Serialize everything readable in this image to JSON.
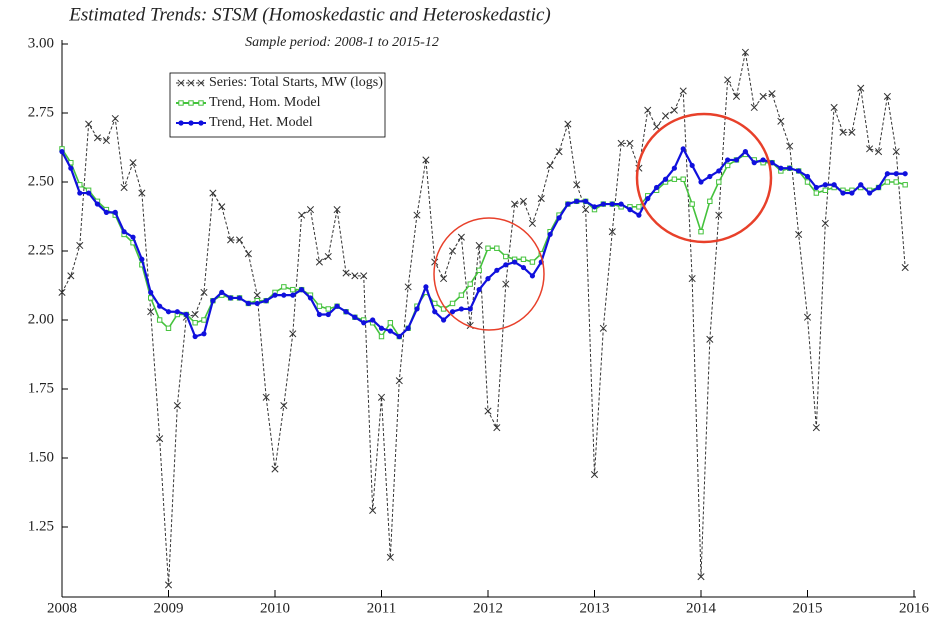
{
  "chart_data": {
    "type": "line",
    "title": "Estimated Trends: STSM (Homoskedastic and Heteroskedastic)",
    "subtitle": "Sample period: 2008-1 to 2015-12",
    "x": [
      2008,
      2008.083,
      2008.167,
      2008.25,
      2008.333,
      2008.417,
      2008.5,
      2008.583,
      2008.667,
      2008.75,
      2008.833,
      2008.917,
      2009,
      2009.083,
      2009.167,
      2009.25,
      2009.333,
      2009.417,
      2009.5,
      2009.583,
      2009.667,
      2009.75,
      2009.833,
      2009.917,
      2010,
      2010.083,
      2010.167,
      2010.25,
      2010.333,
      2010.417,
      2010.5,
      2010.583,
      2010.667,
      2010.75,
      2010.833,
      2010.917,
      2011,
      2011.083,
      2011.167,
      2011.25,
      2011.333,
      2011.417,
      2011.5,
      2011.583,
      2011.667,
      2011.75,
      2011.833,
      2011.917,
      2012,
      2012.083,
      2012.167,
      2012.25,
      2012.333,
      2012.417,
      2012.5,
      2012.583,
      2012.667,
      2012.75,
      2012.833,
      2012.917,
      2013,
      2013.083,
      2013.167,
      2013.25,
      2013.333,
      2013.417,
      2013.5,
      2013.583,
      2013.667,
      2013.75,
      2013.833,
      2013.917,
      2014,
      2014.083,
      2014.167,
      2014.25,
      2014.333,
      2014.417,
      2014.5,
      2014.583,
      2014.667,
      2014.75,
      2014.833,
      2014.917,
      2015,
      2015.083,
      2015.167,
      2015.25,
      2015.333,
      2015.417,
      2015.5,
      2015.583,
      2015.667,
      2015.75,
      2015.833,
      2015.917
    ],
    "series": [
      {
        "name": "Series: Total Starts, MW (logs)",
        "color": "#333333",
        "marker": "x",
        "values": [
          2.1,
          2.16,
          2.27,
          2.71,
          2.66,
          2.65,
          2.73,
          2.48,
          2.57,
          2.46,
          2.03,
          1.57,
          1.04,
          1.69,
          2.01,
          2.02,
          2.1,
          2.46,
          2.41,
          2.29,
          2.29,
          2.24,
          2.09,
          1.72,
          1.46,
          1.69,
          1.95,
          2.38,
          2.4,
          2.21,
          2.23,
          2.4,
          2.17,
          2.16,
          2.16,
          1.31,
          1.72,
          1.14,
          1.78,
          2.12,
          2.38,
          2.58,
          2.21,
          2.15,
          2.25,
          2.3,
          1.98,
          2.27,
          1.67,
          1.61,
          2.13,
          2.42,
          2.43,
          2.35,
          2.44,
          2.56,
          2.61,
          2.71,
          2.49,
          2.4,
          1.44,
          1.97,
          2.32,
          2.64,
          2.64,
          2.55,
          2.76,
          2.7,
          2.74,
          2.76,
          2.83,
          2.15,
          1.07,
          1.93,
          2.38,
          2.87,
          2.81,
          2.97,
          2.77,
          2.81,
          2.82,
          2.72,
          2.63,
          2.31,
          2.01,
          1.61,
          2.35,
          2.77,
          2.68,
          2.68,
          2.84,
          2.62,
          2.61,
          2.81,
          2.61,
          2.19
        ]
      },
      {
        "name": "Trend, Hom. Model",
        "color": "#44c23c",
        "marker": "square",
        "values": [
          2.62,
          2.57,
          2.49,
          2.47,
          2.43,
          2.4,
          2.38,
          2.31,
          2.28,
          2.2,
          2.08,
          2.0,
          1.97,
          2.02,
          2.02,
          1.99,
          2.0,
          2.07,
          2.09,
          2.08,
          2.08,
          2.06,
          2.07,
          2.07,
          2.1,
          2.12,
          2.11,
          2.11,
          2.09,
          2.05,
          2.04,
          2.05,
          2.03,
          2.01,
          2.0,
          1.99,
          1.94,
          1.99,
          1.94,
          1.97,
          2.05,
          2.1,
          2.06,
          2.04,
          2.06,
          2.09,
          2.13,
          2.18,
          2.26,
          2.26,
          2.23,
          2.22,
          2.22,
          2.21,
          2.24,
          2.32,
          2.38,
          2.42,
          2.43,
          2.43,
          2.4,
          2.42,
          2.42,
          2.41,
          2.41,
          2.41,
          2.45,
          2.47,
          2.5,
          2.51,
          2.51,
          2.42,
          2.32,
          2.43,
          2.5,
          2.56,
          2.58,
          2.6,
          2.58,
          2.57,
          2.57,
          2.54,
          2.55,
          2.54,
          2.5,
          2.46,
          2.47,
          2.48,
          2.47,
          2.47,
          2.48,
          2.47,
          2.48,
          2.5,
          2.5,
          2.49
        ]
      },
      {
        "name": "Trend, Het. Model",
        "color": "#1010dd",
        "marker": "dot",
        "values": [
          2.61,
          2.55,
          2.46,
          2.46,
          2.42,
          2.39,
          2.39,
          2.32,
          2.3,
          2.22,
          2.1,
          2.05,
          2.03,
          2.03,
          2.02,
          1.94,
          1.95,
          2.07,
          2.1,
          2.08,
          2.08,
          2.06,
          2.06,
          2.07,
          2.09,
          2.09,
          2.09,
          2.11,
          2.08,
          2.02,
          2.02,
          2.05,
          2.03,
          2.01,
          1.99,
          2.0,
          1.97,
          1.96,
          1.94,
          1.97,
          2.04,
          2.12,
          2.03,
          2.0,
          2.03,
          2.04,
          2.04,
          2.11,
          2.15,
          2.18,
          2.2,
          2.21,
          2.19,
          2.16,
          2.21,
          2.31,
          2.37,
          2.42,
          2.43,
          2.43,
          2.41,
          2.42,
          2.42,
          2.42,
          2.4,
          2.38,
          2.44,
          2.48,
          2.51,
          2.55,
          2.62,
          2.56,
          2.5,
          2.52,
          2.54,
          2.58,
          2.58,
          2.61,
          2.57,
          2.58,
          2.57,
          2.55,
          2.55,
          2.54,
          2.52,
          2.48,
          2.49,
          2.49,
          2.46,
          2.46,
          2.49,
          2.46,
          2.48,
          2.53,
          2.53,
          2.53
        ]
      }
    ],
    "xlim": [
      2008,
      2016
    ],
    "xticks": [
      2008,
      2009,
      2010,
      2011,
      2012,
      2013,
      2014,
      2015,
      2016
    ],
    "ylim": [
      1.0,
      3.0
    ],
    "yticks": [
      {
        "value": 1.25,
        "label": "1.25"
      },
      {
        "value": 1.5,
        "label": "1.50"
      },
      {
        "value": 1.75,
        "label": "1.75"
      },
      {
        "value": 2.0,
        "label": "2.00"
      },
      {
        "value": 2.25,
        "label": "2.25"
      },
      {
        "value": 2.5,
        "label": "2.50"
      },
      {
        "value": 2.75,
        "label": "2.75"
      },
      {
        "value": 3.0,
        "label": "3.00"
      }
    ],
    "legend": "upper left",
    "grid": false
  }
}
